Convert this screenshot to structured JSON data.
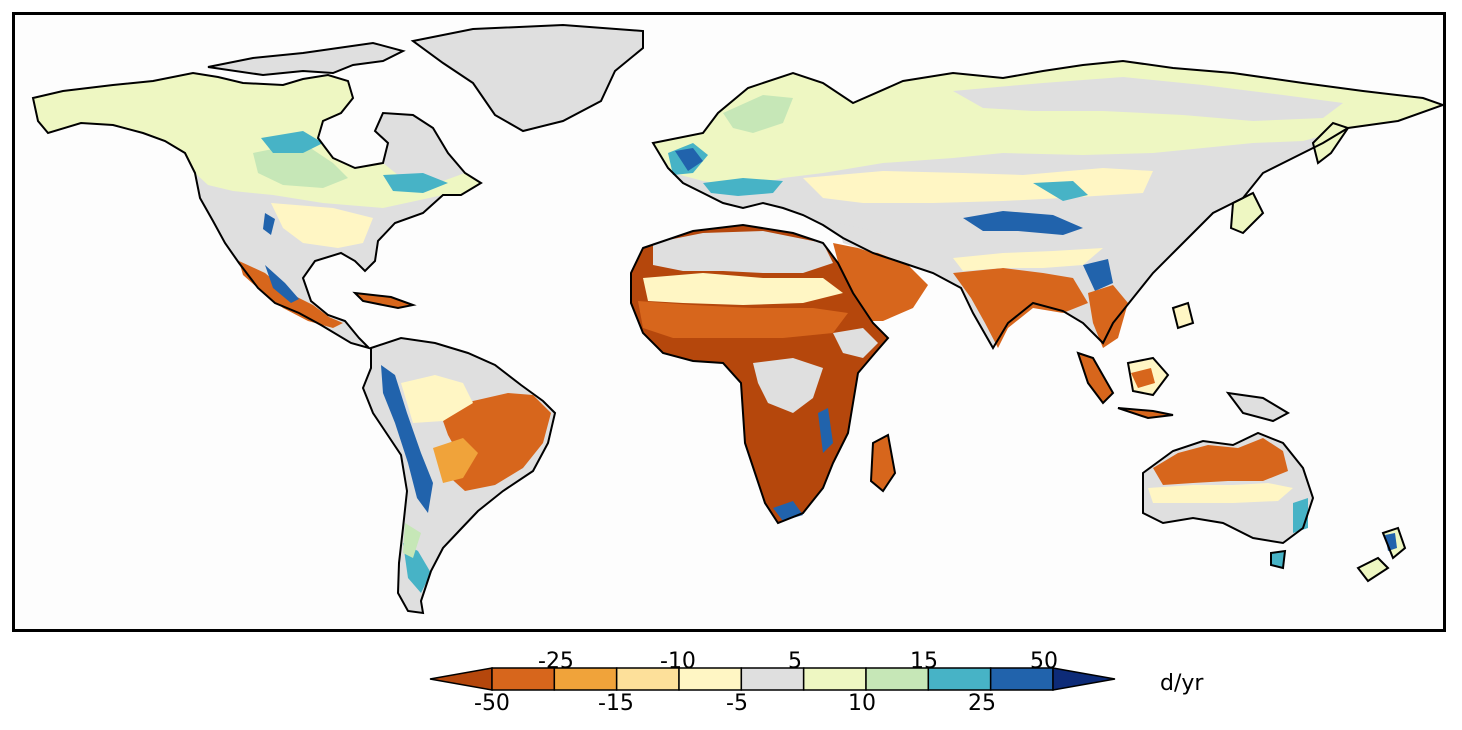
{
  "map": {
    "colors": {
      "c_m50": "#b5470c",
      "c_m25": "#d7661c",
      "c_m15": "#f0a33a",
      "c_m10": "#fde09a",
      "c_m5": "#fff6c4",
      "c_0": "#dfdfdf",
      "c_5": "#eef7c2",
      "c_10": "#c6e7b7",
      "c_15": "#47b3c6",
      "c_25": "#2163ac",
      "c_50": "#0d2b78",
      "coast": "#000000"
    }
  },
  "legend": {
    "unit": "d/yr",
    "upper_ticks": [
      "-25",
      "-10",
      "5",
      "15",
      "50"
    ],
    "lower_ticks": [
      "-50",
      "-15",
      "-5",
      "10",
      "25"
    ],
    "colors": [
      "#b5470c",
      "#d7661c",
      "#f0a33a",
      "#fde09a",
      "#fff6c4",
      "#dfdfdf",
      "#eef7c2",
      "#c6e7b7",
      "#47b3c6",
      "#2163ac",
      "#0d2b78"
    ]
  }
}
